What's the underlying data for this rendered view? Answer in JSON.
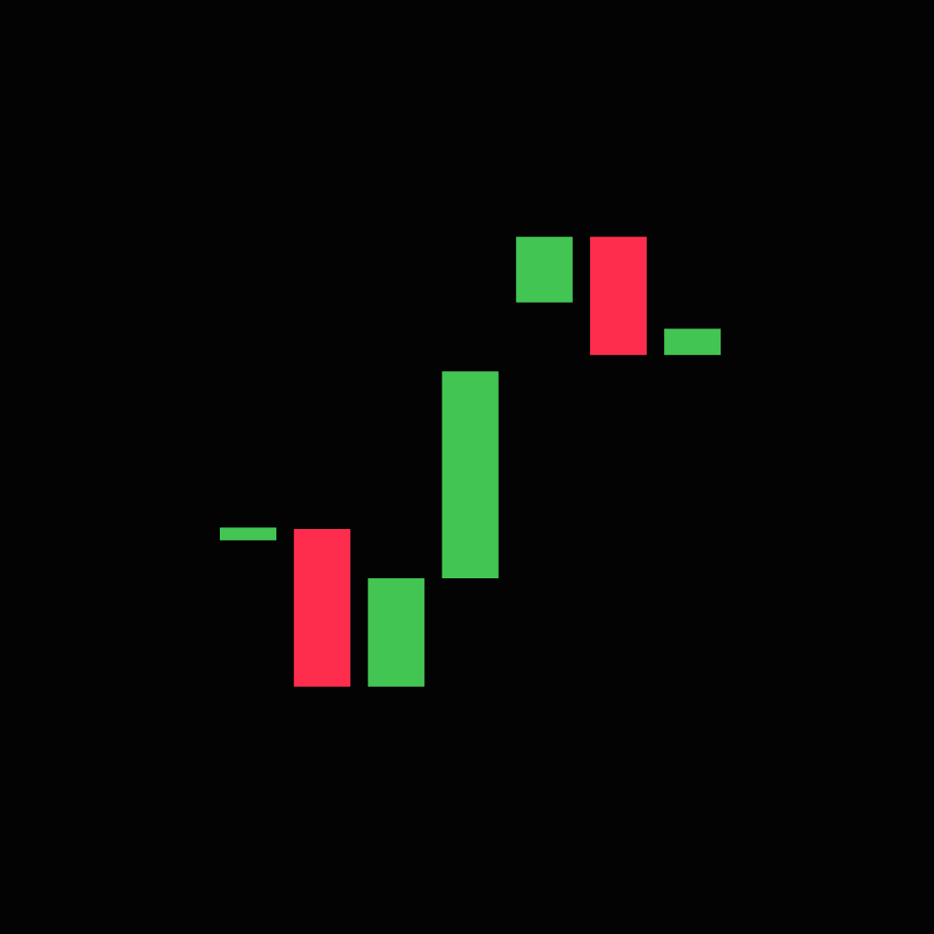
{
  "chart_data": {
    "type": "waterfall",
    "background_color": "#030303",
    "up_color": "#43c553",
    "down_color": "#ff2d4d",
    "axes_visible": false,
    "grid": false,
    "legend": "none",
    "y_range_normalized": [
      0,
      1
    ],
    "bars": [
      {
        "start": 0.385,
        "end": 0.4,
        "direction": "up"
      },
      {
        "start": 0.4,
        "end": 0.16,
        "direction": "down"
      },
      {
        "start": 0.16,
        "end": 0.325,
        "direction": "up"
      },
      {
        "start": 0.325,
        "end": 0.64,
        "direction": "up"
      },
      {
        "start": 0.745,
        "end": 0.845,
        "direction": "up"
      },
      {
        "start": 0.845,
        "end": 0.665,
        "direction": "down"
      },
      {
        "start": 0.665,
        "end": 0.705,
        "direction": "up"
      }
    ]
  }
}
